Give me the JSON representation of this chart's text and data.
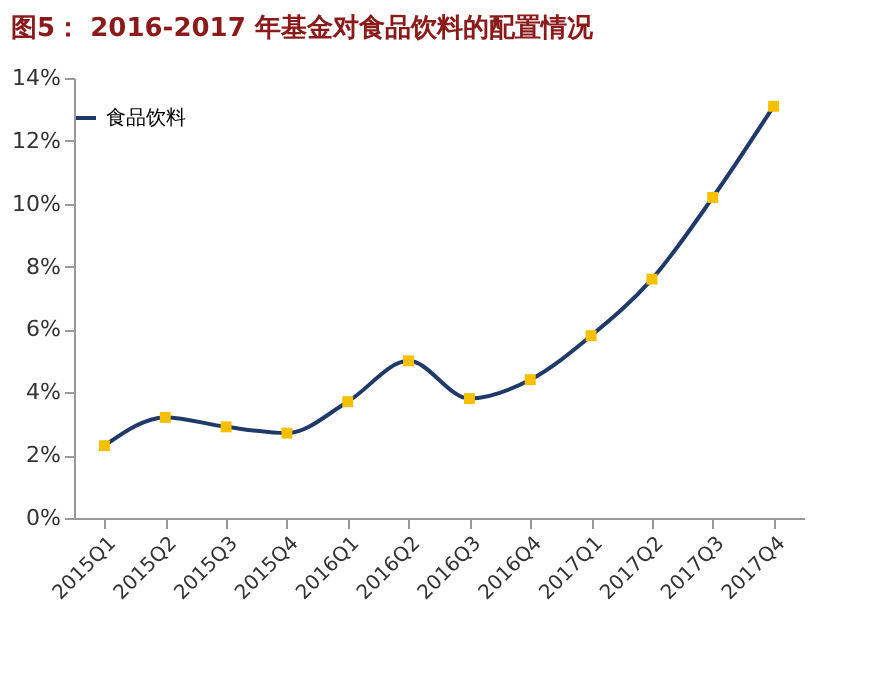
{
  "chart_data": {
    "type": "line",
    "title": "图5： 2016-2017 年基金对食品饮料的配置情况",
    "categories": [
      "2015Q1",
      "2015Q2",
      "2015Q3",
      "2015Q4",
      "2016Q1",
      "2016Q2",
      "2016Q3",
      "2016Q4",
      "2017Q1",
      "2017Q2",
      "2017Q3",
      "2017Q4"
    ],
    "series": [
      {
        "name": "食品饮料",
        "color": "#1f3a68",
        "colors": [
          "#f5c000",
          "#f5c000",
          "#f5c000",
          "#f5c000",
          "#f5c000",
          "#f5c000",
          "#f5c000",
          "#f5c000",
          "#f5c000",
          "#f5c000",
          "#f5c000",
          "#f5c000"
        ],
        "values": [
          2.3,
          3.2,
          2.9,
          2.7,
          3.7,
          5.0,
          3.8,
          4.4,
          5.8,
          7.6,
          10.2,
          13.1
        ]
      }
    ],
    "ylim": [
      0,
      14
    ],
    "yticks": [
      {
        "value": 0,
        "label": "0%"
      },
      {
        "value": 2,
        "label": "2%"
      },
      {
        "value": 4,
        "label": "4%"
      },
      {
        "value": 6,
        "label": "6%"
      },
      {
        "value": 8,
        "label": "8%"
      },
      {
        "value": 10,
        "label": "10%"
      },
      {
        "value": 12,
        "label": "12%"
      },
      {
        "value": 14,
        "label": "14%"
      }
    ],
    "grid": false,
    "legend": "top",
    "marker": "square"
  }
}
